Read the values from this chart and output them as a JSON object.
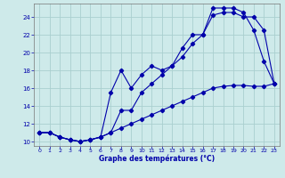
{
  "xlabel": "Graphe des températures (°C)",
  "bg_color": "#ceeaea",
  "grid_color": "#aacfcf",
  "line_color": "#0000aa",
  "xlim": [
    -0.5,
    23.5
  ],
  "ylim": [
    9.5,
    25.5
  ],
  "xticks": [
    0,
    1,
    2,
    3,
    4,
    5,
    6,
    7,
    8,
    9,
    10,
    11,
    12,
    13,
    14,
    15,
    16,
    17,
    18,
    19,
    20,
    21,
    22,
    23
  ],
  "yticks": [
    10,
    12,
    14,
    16,
    18,
    20,
    22,
    24
  ],
  "line1_x": [
    0,
    1,
    2,
    3,
    4,
    5,
    6,
    7,
    8,
    9,
    10,
    11,
    12,
    13,
    14,
    15,
    16,
    17,
    18,
    19,
    20,
    21,
    22,
    23
  ],
  "line1_y": [
    11.0,
    11.0,
    10.5,
    10.2,
    10.0,
    10.2,
    10.5,
    15.5,
    18.0,
    16.0,
    17.5,
    18.5,
    18.0,
    18.5,
    20.5,
    22.0,
    22.0,
    25.0,
    25.0,
    25.0,
    24.5,
    22.5,
    19.0,
    16.5
  ],
  "line2_x": [
    0,
    1,
    2,
    3,
    4,
    5,
    6,
    7,
    8,
    9,
    10,
    11,
    12,
    13,
    14,
    15,
    16,
    17,
    18,
    19,
    20,
    21,
    22,
    23
  ],
  "line2_y": [
    11.0,
    11.0,
    10.5,
    10.2,
    10.0,
    10.2,
    10.5,
    11.0,
    13.5,
    13.5,
    15.5,
    16.5,
    17.5,
    18.5,
    19.5,
    21.0,
    22.0,
    24.2,
    24.5,
    24.5,
    24.0,
    24.0,
    22.5,
    16.5
  ],
  "line3_x": [
    0,
    1,
    2,
    3,
    4,
    5,
    6,
    7,
    8,
    9,
    10,
    11,
    12,
    13,
    14,
    15,
    16,
    17,
    18,
    19,
    20,
    21,
    22,
    23
  ],
  "line3_y": [
    11.0,
    11.0,
    10.5,
    10.2,
    10.0,
    10.2,
    10.5,
    11.0,
    11.5,
    12.0,
    12.5,
    13.0,
    13.5,
    14.0,
    14.5,
    15.0,
    15.5,
    16.0,
    16.2,
    16.3,
    16.3,
    16.2,
    16.2,
    16.5
  ]
}
